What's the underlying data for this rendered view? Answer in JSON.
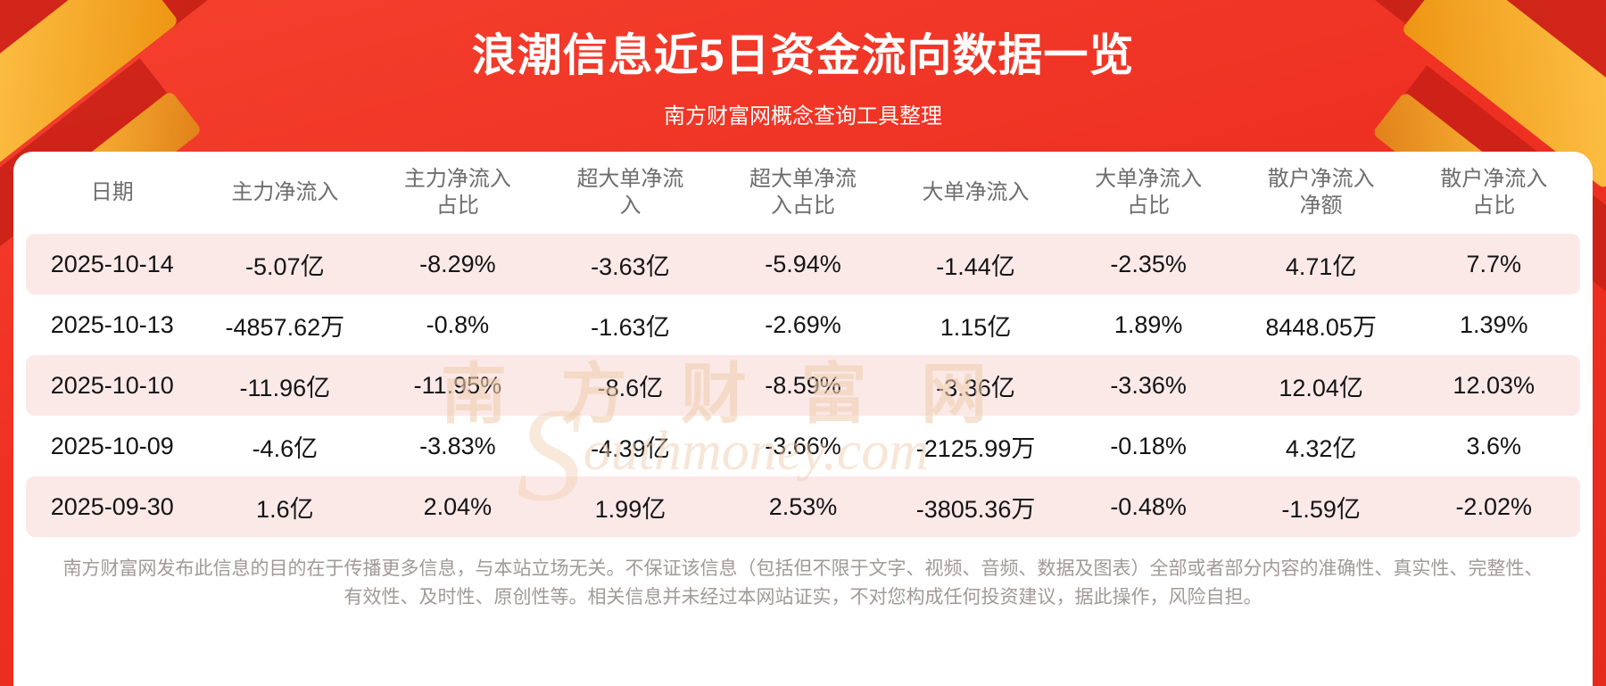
{
  "page": {
    "title": "浪潮信息近5日资金流向数据一览",
    "subtitle": "南方财富网概念查询工具整理"
  },
  "chart_data": {
    "type": "table",
    "title": "浪潮信息近5日资金流向数据一览",
    "columns": [
      "日期",
      "主力净流入",
      "主力净流入\n占比",
      "超大单净流\n入",
      "超大单净流\n入占比",
      "大单净流入",
      "大单净流入\n占比",
      "散户净流入\n净额",
      "散户净流入\n占比"
    ],
    "rows": [
      [
        "2025-10-14",
        "-5.07亿",
        "-8.29%",
        "-3.63亿",
        "-5.94%",
        "-1.44亿",
        "-2.35%",
        "4.71亿",
        "7.7%"
      ],
      [
        "2025-10-13",
        "-4857.62万",
        "-0.8%",
        "-1.63亿",
        "-2.69%",
        "1.15亿",
        "1.89%",
        "8448.05万",
        "1.39%"
      ],
      [
        "2025-10-10",
        "-11.96亿",
        "-11.95%",
        "-8.6亿",
        "-8.59%",
        "-3.36亿",
        "-3.36%",
        "12.04亿",
        "12.03%"
      ],
      [
        "2025-10-09",
        "-4.6亿",
        "-3.83%",
        "-4.39亿",
        "-3.66%",
        "-2125.99万",
        "-0.18%",
        "4.32亿",
        "3.6%"
      ],
      [
        "2025-09-30",
        "1.6亿",
        "2.04%",
        "1.99亿",
        "2.53%",
        "-3805.36万",
        "-0.48%",
        "-1.59亿",
        "-2.02%"
      ]
    ]
  },
  "watermark": {
    "chinese": "南 方 财 富 网",
    "latin_initial": "S",
    "latin_rest": "outhmoney.com"
  },
  "footer": {
    "disclaimer": "南方财富网发布此信息的目的在于传播更多信息，与本站立场无关。不保证该信息（包括但不限于文字、视频、音频、数据及图表）全部或者部分内容的准确性、真实性、完整性、有效性、及时性、原创性等。相关信息并未经过本网站证实，不对您构成任何投资建议，据此操作，风险自担。"
  },
  "colors": {
    "background_red": "#ee3022",
    "dark_red": "#d9281c",
    "accent_gold": "#f5a623",
    "row_pink": "#fbe9e8",
    "header_text": "#6d6d6d",
    "body_text": "#141414",
    "footer_text": "#a09a98"
  }
}
